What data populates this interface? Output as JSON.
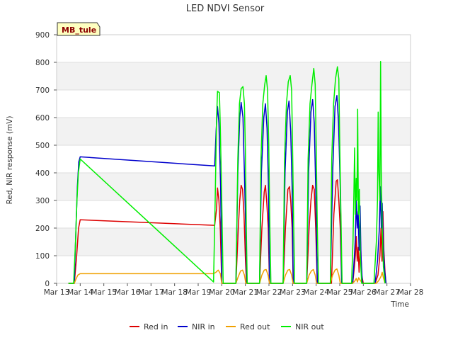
{
  "chart_data": {
    "type": "line",
    "title": "LED NDVI Sensor",
    "xlabel": "Time",
    "ylabel": "Red, NIR response (mV)",
    "badge": "MB_tule",
    "ylim": [
      0,
      900
    ],
    "yticks": [
      0,
      100,
      200,
      300,
      400,
      500,
      600,
      700,
      800,
      900
    ],
    "xlim": [
      13,
      28
    ],
    "xticks": [
      {
        "v": 13,
        "label": "Mar 13"
      },
      {
        "v": 14,
        "label": "Mar 14"
      },
      {
        "v": 15,
        "label": "Mar 15"
      },
      {
        "v": 16,
        "label": "Mar 16"
      },
      {
        "v": 17,
        "label": "Mar 17"
      },
      {
        "v": 18,
        "label": "Mar 18"
      },
      {
        "v": 19,
        "label": "Mar 19"
      },
      {
        "v": 20,
        "label": "Mar 20"
      },
      {
        "v": 21,
        "label": "Mar 21"
      },
      {
        "v": 22,
        "label": "Mar 22"
      },
      {
        "v": 23,
        "label": "Mar 23"
      },
      {
        "v": 24,
        "label": "Mar 24"
      },
      {
        "v": 25,
        "label": "Mar 25"
      },
      {
        "v": 26,
        "label": "Mar 26"
      },
      {
        "v": 27,
        "label": "Mar 27"
      },
      {
        "v": 28,
        "label": "Mar 28"
      }
    ],
    "grid": "horizontal bands",
    "legend_position": "bottom",
    "series": [
      {
        "name": "Red in",
        "color": "#dd0000",
        "points": [
          [
            13.5,
            0
          ],
          [
            13.75,
            0
          ],
          [
            13.85,
            100
          ],
          [
            13.93,
            200
          ],
          [
            14.0,
            230
          ],
          [
            19.7,
            210
          ],
          [
            19.78,
            270
          ],
          [
            19.82,
            345
          ],
          [
            19.88,
            300
          ],
          [
            19.94,
            190
          ],
          [
            20.0,
            0
          ],
          [
            20.6,
            0
          ],
          [
            20.7,
            200
          ],
          [
            20.76,
            300
          ],
          [
            20.82,
            355
          ],
          [
            20.88,
            340
          ],
          [
            20.94,
            250
          ],
          [
            21.0,
            90
          ],
          [
            21.05,
            0
          ],
          [
            21.6,
            0
          ],
          [
            21.7,
            200
          ],
          [
            21.8,
            330
          ],
          [
            21.85,
            355
          ],
          [
            21.9,
            300
          ],
          [
            21.97,
            200
          ],
          [
            22.02,
            0
          ],
          [
            22.6,
            0
          ],
          [
            22.7,
            200
          ],
          [
            22.8,
            340
          ],
          [
            22.87,
            350
          ],
          [
            22.92,
            300
          ],
          [
            22.98,
            200
          ],
          [
            23.03,
            0
          ],
          [
            23.6,
            0
          ],
          [
            23.7,
            200
          ],
          [
            23.78,
            300
          ],
          [
            23.85,
            355
          ],
          [
            23.92,
            340
          ],
          [
            23.98,
            200
          ],
          [
            24.05,
            0
          ],
          [
            24.65,
            0
          ],
          [
            24.75,
            250
          ],
          [
            24.85,
            370
          ],
          [
            24.9,
            375
          ],
          [
            24.96,
            300
          ],
          [
            25.02,
            200
          ],
          [
            25.08,
            0
          ],
          [
            25.55,
            0
          ],
          [
            25.62,
            60
          ],
          [
            25.66,
            100
          ],
          [
            25.7,
            170
          ],
          [
            25.74,
            80
          ],
          [
            25.78,
            130
          ],
          [
            25.82,
            40
          ],
          [
            25.88,
            150
          ],
          [
            25.93,
            30
          ],
          [
            26.0,
            0
          ],
          [
            26.5,
            0
          ],
          [
            26.62,
            30
          ],
          [
            26.7,
            100
          ],
          [
            26.75,
            200
          ],
          [
            26.79,
            80
          ],
          [
            26.83,
            260
          ],
          [
            26.87,
            120
          ],
          [
            26.92,
            40
          ],
          [
            26.96,
            0
          ]
        ]
      },
      {
        "name": "NIR in",
        "color": "#0000cc",
        "points": [
          [
            13.5,
            0
          ],
          [
            13.75,
            0
          ],
          [
            13.82,
            200
          ],
          [
            13.88,
            350
          ],
          [
            13.94,
            440
          ],
          [
            14.0,
            458
          ],
          [
            19.7,
            425
          ],
          [
            19.76,
            550
          ],
          [
            19.82,
            640
          ],
          [
            19.88,
            580
          ],
          [
            19.95,
            350
          ],
          [
            20.0,
            0
          ],
          [
            20.6,
            0
          ],
          [
            20.68,
            400
          ],
          [
            20.76,
            600
          ],
          [
            20.82,
            655
          ],
          [
            20.9,
            600
          ],
          [
            20.96,
            400
          ],
          [
            21.02,
            180
          ],
          [
            21.06,
            0
          ],
          [
            21.6,
            0
          ],
          [
            21.68,
            400
          ],
          [
            21.78,
            600
          ],
          [
            21.85,
            650
          ],
          [
            21.92,
            560
          ],
          [
            21.98,
            350
          ],
          [
            22.02,
            0
          ],
          [
            22.6,
            0
          ],
          [
            22.68,
            400
          ],
          [
            22.78,
            620
          ],
          [
            22.85,
            660
          ],
          [
            22.92,
            550
          ],
          [
            22.98,
            350
          ],
          [
            23.03,
            0
          ],
          [
            23.6,
            0
          ],
          [
            23.68,
            400
          ],
          [
            23.78,
            620
          ],
          [
            23.85,
            665
          ],
          [
            23.92,
            580
          ],
          [
            23.98,
            350
          ],
          [
            24.05,
            0
          ],
          [
            24.6,
            0
          ],
          [
            24.7,
            400
          ],
          [
            24.8,
            640
          ],
          [
            24.88,
            680
          ],
          [
            24.95,
            580
          ],
          [
            25.02,
            350
          ],
          [
            25.08,
            0
          ],
          [
            25.55,
            0
          ],
          [
            25.62,
            100
          ],
          [
            25.66,
            160
          ],
          [
            25.7,
            300
          ],
          [
            25.74,
            200
          ],
          [
            25.78,
            260
          ],
          [
            25.82,
            120
          ],
          [
            25.86,
            280
          ],
          [
            25.9,
            100
          ],
          [
            25.96,
            0
          ],
          [
            26.5,
            0
          ],
          [
            26.6,
            80
          ],
          [
            26.68,
            200
          ],
          [
            26.72,
            350
          ],
          [
            26.76,
            200
          ],
          [
            26.8,
            290
          ],
          [
            26.84,
            150
          ],
          [
            26.9,
            50
          ],
          [
            26.96,
            0
          ]
        ]
      },
      {
        "name": "Red out",
        "color": "#f0a000",
        "points": [
          [
            13.5,
            0
          ],
          [
            13.75,
            0
          ],
          [
            13.82,
            15
          ],
          [
            13.9,
            30
          ],
          [
            14.0,
            35
          ],
          [
            19.65,
            35
          ],
          [
            19.75,
            40
          ],
          [
            19.85,
            48
          ],
          [
            19.94,
            35
          ],
          [
            20.0,
            0
          ],
          [
            20.6,
            0
          ],
          [
            20.7,
            25
          ],
          [
            20.8,
            45
          ],
          [
            20.88,
            48
          ],
          [
            20.96,
            30
          ],
          [
            21.02,
            0
          ],
          [
            21.6,
            0
          ],
          [
            21.7,
            30
          ],
          [
            21.8,
            48
          ],
          [
            21.88,
            50
          ],
          [
            21.96,
            30
          ],
          [
            22.02,
            0
          ],
          [
            22.6,
            0
          ],
          [
            22.7,
            30
          ],
          [
            22.8,
            48
          ],
          [
            22.88,
            50
          ],
          [
            22.96,
            30
          ],
          [
            23.02,
            0
          ],
          [
            23.6,
            0
          ],
          [
            23.7,
            30
          ],
          [
            23.8,
            45
          ],
          [
            23.88,
            50
          ],
          [
            23.96,
            30
          ],
          [
            24.02,
            0
          ],
          [
            24.6,
            0
          ],
          [
            24.7,
            30
          ],
          [
            24.8,
            48
          ],
          [
            24.88,
            52
          ],
          [
            24.96,
            30
          ],
          [
            25.02,
            0
          ],
          [
            25.55,
            0
          ],
          [
            25.65,
            10
          ],
          [
            25.7,
            18
          ],
          [
            25.75,
            5
          ],
          [
            25.8,
            20
          ],
          [
            25.88,
            10
          ],
          [
            25.95,
            0
          ],
          [
            26.55,
            0
          ],
          [
            26.65,
            10
          ],
          [
            26.75,
            25
          ],
          [
            26.8,
            40
          ],
          [
            26.85,
            20
          ],
          [
            26.92,
            0
          ]
        ]
      },
      {
        "name": "NIR out",
        "color": "#00ee00",
        "points": [
          [
            13.5,
            0
          ],
          [
            13.72,
            0
          ],
          [
            13.8,
            150
          ],
          [
            13.86,
            300
          ],
          [
            13.92,
            400
          ],
          [
            14.0,
            450
          ],
          [
            19.65,
            5
          ],
          [
            19.72,
            300
          ],
          [
            19.78,
            600
          ],
          [
            19.82,
            695
          ],
          [
            19.9,
            690
          ],
          [
            19.94,
            560
          ],
          [
            20.0,
            300
          ],
          [
            20.06,
            0
          ],
          [
            20.6,
            0
          ],
          [
            20.68,
            450
          ],
          [
            20.75,
            650
          ],
          [
            20.82,
            705
          ],
          [
            20.9,
            712
          ],
          [
            20.96,
            650
          ],
          [
            21.0,
            480
          ],
          [
            21.04,
            200
          ],
          [
            21.08,
            0
          ],
          [
            21.6,
            0
          ],
          [
            21.66,
            450
          ],
          [
            21.74,
            650
          ],
          [
            21.82,
            720
          ],
          [
            21.88,
            752
          ],
          [
            21.94,
            700
          ],
          [
            21.99,
            500
          ],
          [
            22.04,
            200
          ],
          [
            22.08,
            0
          ],
          [
            22.6,
            0
          ],
          [
            22.66,
            450
          ],
          [
            22.74,
            650
          ],
          [
            22.82,
            730
          ],
          [
            22.9,
            752
          ],
          [
            22.96,
            700
          ],
          [
            23.0,
            500
          ],
          [
            23.05,
            200
          ],
          [
            23.09,
            0
          ],
          [
            23.6,
            0
          ],
          [
            23.66,
            450
          ],
          [
            23.74,
            650
          ],
          [
            23.82,
            720
          ],
          [
            23.9,
            778
          ],
          [
            23.96,
            720
          ],
          [
            24.0,
            500
          ],
          [
            24.05,
            200
          ],
          [
            24.1,
            0
          ],
          [
            24.6,
            0
          ],
          [
            24.66,
            450
          ],
          [
            24.74,
            650
          ],
          [
            24.82,
            740
          ],
          [
            24.9,
            784
          ],
          [
            24.96,
            740
          ],
          [
            25.0,
            500
          ],
          [
            25.06,
            200
          ],
          [
            25.1,
            0
          ],
          [
            25.5,
            0
          ],
          [
            25.56,
            150
          ],
          [
            25.6,
            330
          ],
          [
            25.63,
            490
          ],
          [
            25.66,
            250
          ],
          [
            25.7,
            380
          ],
          [
            25.73,
            300
          ],
          [
            25.76,
            630
          ],
          [
            25.79,
            250
          ],
          [
            25.83,
            340
          ],
          [
            25.87,
            100
          ],
          [
            25.93,
            0
          ],
          [
            26.45,
            0
          ],
          [
            26.55,
            150
          ],
          [
            26.6,
            300
          ],
          [
            26.63,
            620
          ],
          [
            26.66,
            400
          ],
          [
            26.7,
            300
          ],
          [
            26.73,
            803
          ],
          [
            26.76,
            400
          ],
          [
            26.8,
            200
          ],
          [
            26.85,
            60
          ],
          [
            26.92,
            0
          ]
        ]
      }
    ]
  }
}
